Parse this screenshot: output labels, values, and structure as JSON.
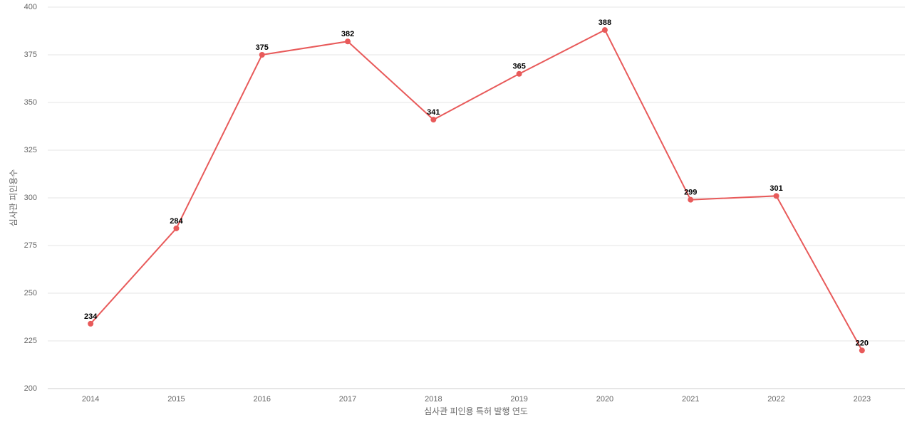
{
  "chart_data": {
    "type": "line",
    "x_label": "심사관 피인용 특허 발행 연도",
    "y_label": "심사관 피인용수",
    "categories": [
      "2014",
      "2015",
      "2016",
      "2017",
      "2018",
      "2019",
      "2020",
      "2021",
      "2022",
      "2023"
    ],
    "series": [
      {
        "name": "심사관 피인용수",
        "color": "#e85a5a",
        "values": [
          234,
          284,
          375,
          382,
          341,
          365,
          388,
          299,
          301,
          220
        ]
      }
    ],
    "ylim": [
      200,
      400
    ],
    "yticks": [
      200,
      225,
      250,
      275,
      300,
      325,
      350,
      375,
      400
    ],
    "grid": true
  }
}
